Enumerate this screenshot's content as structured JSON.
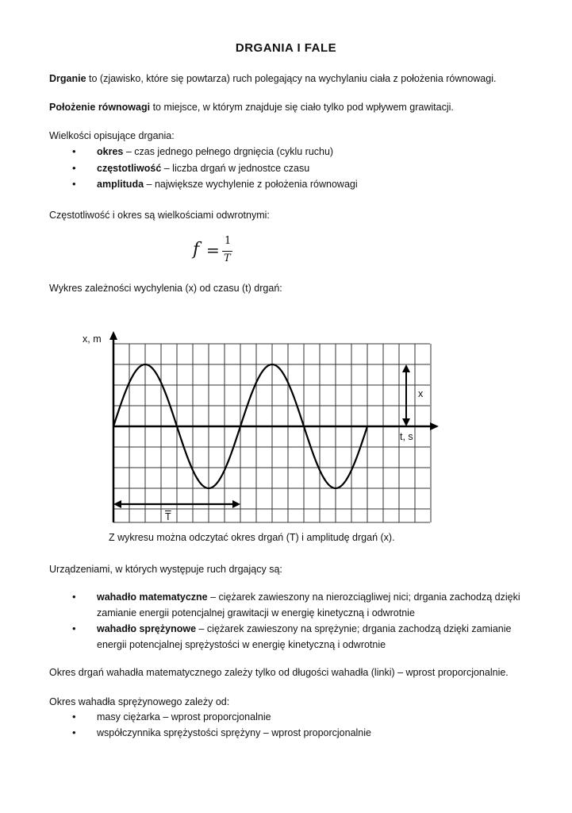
{
  "title": "DRGANIA   I   FALE",
  "p1": {
    "bold": "Drganie",
    "rest": " to (zjawisko, które się powtarza) ruch polegający na wychylaniu ciała z położenia równowagi."
  },
  "p2": {
    "bold": "Położenie równowagi",
    "rest": " to miejsce, w którym znajduje się ciało tylko pod wpływem grawitacji."
  },
  "p3": "Wielkości opisujące drgania:",
  "list1": [
    {
      "bold": "okres",
      "rest": " – czas jednego pełnego drgnięcia (cyklu ruchu)"
    },
    {
      "bold": "częstotliwość",
      "rest": " – liczba drgań w jednostce czasu"
    },
    {
      "bold": "amplituda",
      "rest": " – największe wychylenie z położenia równowagi"
    }
  ],
  "p4": "Częstotliwość i okres są wielkościami odwrotnymi:",
  "formula": {
    "lhs": "f",
    "eq": "=",
    "num": "1",
    "den": "T"
  },
  "p5": "Wykres zależności wychylenia (x) od czasu (t) drgań:",
  "chart_data": {
    "type": "line",
    "ylabel": "x, m",
    "xlabel": "t, s",
    "period_label": "T",
    "amplitude_label": "x",
    "function": "sine",
    "periods_shown": 2,
    "period_grid_cells": 8,
    "amplitude_grid_cells": 3,
    "grid": true
  },
  "caption": "Z wykresu można odczytać okres drgań (T)  i amplitudę drgań (x).",
  "p6": "Urządzeniami, w których występuje ruch drgający są:",
  "list2": [
    {
      "bold": "wahadło matematyczne",
      "rest": " – ciężarek zawieszony na nierozciągliwej nici; drgania zachodzą dzięki",
      "line2": "zamianie energii potencjalnej grawitacji w energię kinetyczną i odwrotnie"
    },
    {
      "bold": "wahadło sprężynowe",
      "rest": " – ciężarek zawieszony na sprężynie; drgania zachodzą dzięki zamianie",
      "line2": "energii potencjalnej sprężystości w energię kinetyczną i odwrotnie"
    }
  ],
  "p7": "Okres drgań wahadła matematycznego zależy tylko od długości wahadła (linki) – wprost proporcjonalnie.",
  "p8": "Okres wahadła sprężynowego zależy od:",
  "list3": [
    "masy ciężarka – wprost proporcjonalnie",
    "współczynnika sprężystości sprężyny – wprost proporcjonalnie"
  ]
}
